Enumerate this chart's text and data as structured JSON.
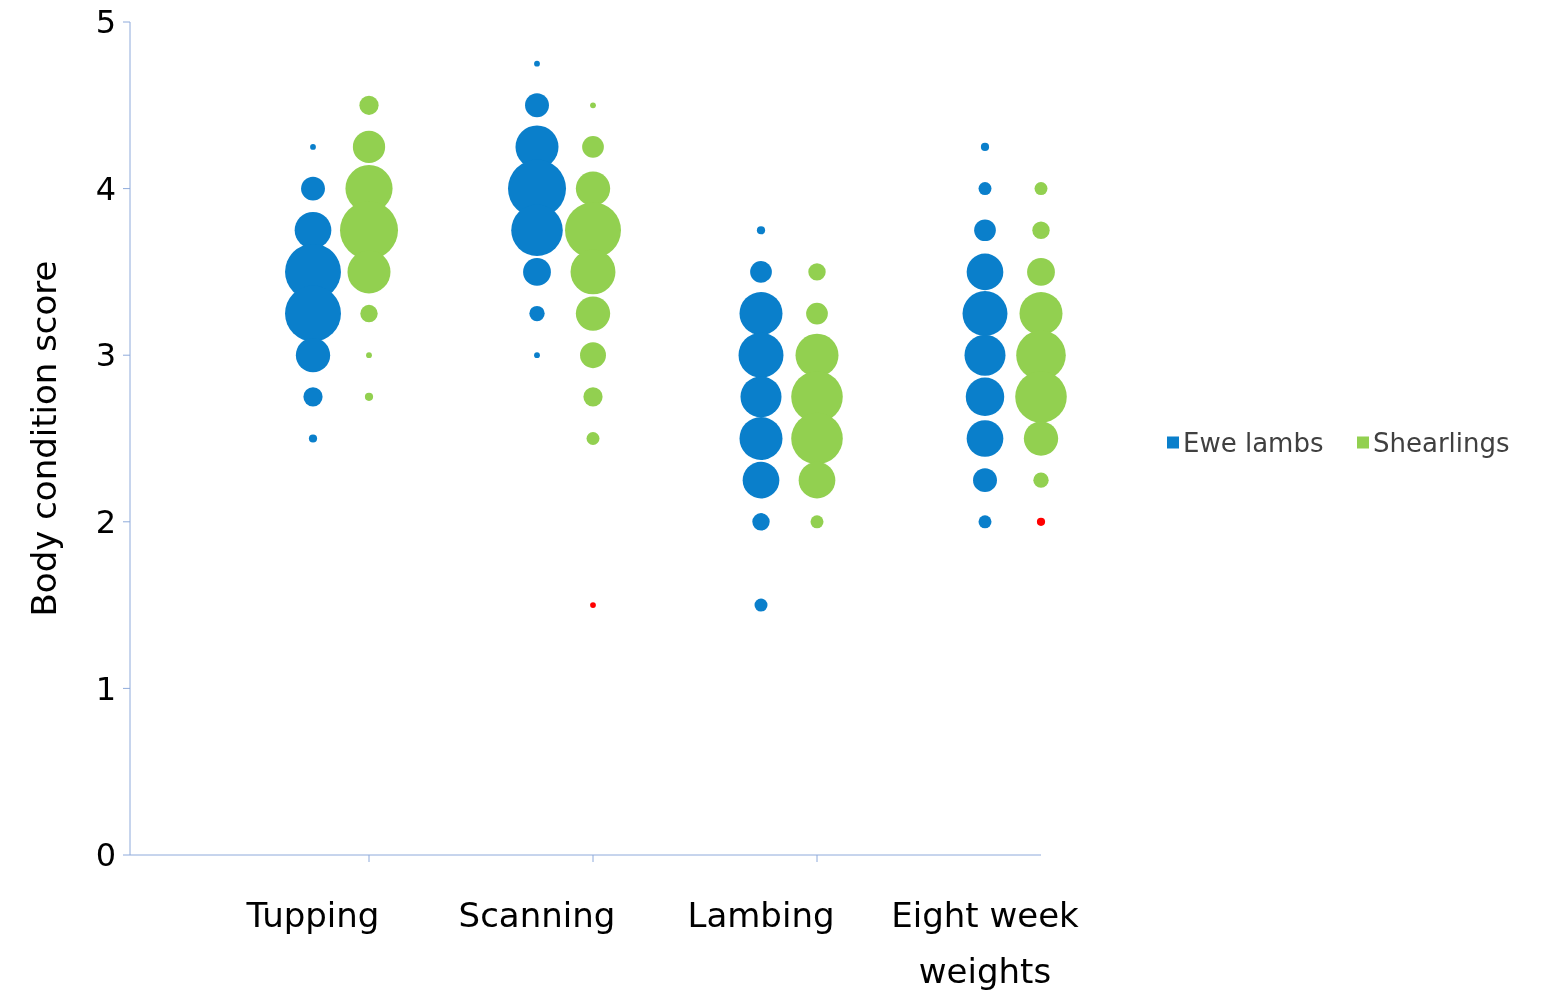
{
  "chart_data": {
    "type": "bubble",
    "ylabel": "Body condition score",
    "categories": [
      "Tupping",
      null,
      null,
      null,
      "Scanning",
      null,
      null,
      null,
      "Lambing",
      null,
      null,
      null,
      "Eight week weights",
      null
    ],
    "ylim": [
      0,
      5
    ],
    "yticks": [
      0,
      1,
      2,
      3,
      4,
      5
    ],
    "legend": "right",
    "series": [
      {
        "name": "Ewe lambs",
        "color": "#0a7fcb",
        "values": [
          4.25,
          null,
          null,
          null,
          4.75,
          null,
          null,
          null,
          3.75,
          null,
          null,
          null,
          4.25,
          null
        ],
        "sizes": [
          0.01,
          null,
          null,
          null,
          0.01,
          null,
          null,
          null,
          0.02,
          null,
          null,
          null,
          0.02,
          null
        ]
      },
      {
        "color": "#0a7fcb",
        "values": [
          4,
          null,
          null,
          null,
          4.5,
          null,
          null,
          null,
          3.5,
          null,
          null,
          null,
          4,
          null
        ],
        "sizes": [
          0.17,
          null,
          null,
          null,
          0.17,
          null,
          null,
          null,
          0.14,
          null,
          null,
          null,
          0.05,
          null
        ]
      },
      {
        "color": "#0a7fcb",
        "values": [
          3.75,
          null,
          null,
          null,
          4.25,
          null,
          null,
          null,
          3.25,
          null,
          null,
          null,
          3.75,
          null
        ],
        "sizes": [
          0.4,
          null,
          null,
          null,
          0.55,
          null,
          null,
          null,
          0.55,
          null,
          null,
          null,
          0.14,
          null
        ]
      },
      {
        "color": "#0a7fcb",
        "values": [
          3.5,
          null,
          null,
          null,
          4,
          null,
          null,
          null,
          3,
          null,
          null,
          null,
          3.5,
          null
        ],
        "sizes": [
          0.93,
          null,
          null,
          null,
          1,
          null,
          null,
          null,
          0.6,
          null,
          null,
          null,
          0.4,
          null
        ]
      },
      {
        "color": "#0a7fcb",
        "values": [
          3.25,
          null,
          null,
          null,
          3.75,
          null,
          null,
          null,
          2.75,
          null,
          null,
          null,
          3.25,
          null
        ],
        "sizes": [
          0.93,
          null,
          null,
          null,
          0.79,
          null,
          null,
          null,
          0.5,
          null,
          null,
          null,
          0.6,
          null
        ]
      },
      {
        "color": "#0a7fcb",
        "values": [
          3,
          null,
          null,
          null,
          3.5,
          null,
          null,
          null,
          2.5,
          null,
          null,
          null,
          3,
          null
        ],
        "sizes": [
          0.35,
          null,
          null,
          null,
          0.23,
          null,
          null,
          null,
          0.55,
          null,
          null,
          null,
          0.5,
          null
        ]
      },
      {
        "color": "#0a7fcb",
        "values": [
          2.75,
          null,
          null,
          null,
          3.25,
          null,
          null,
          null,
          2.25,
          null,
          null,
          null,
          2.75,
          null
        ],
        "sizes": [
          0.11,
          null,
          null,
          null,
          0.07,
          null,
          null,
          null,
          0.4,
          null,
          null,
          null,
          0.44,
          null
        ]
      },
      {
        "color": "#0a7fcb",
        "values": [
          2.5,
          null,
          null,
          null,
          3,
          null,
          null,
          null,
          2,
          null,
          null,
          null,
          2.5,
          null
        ],
        "sizes": [
          0.02,
          null,
          null,
          null,
          0.01,
          null,
          null,
          null,
          0.09,
          null,
          null,
          null,
          0.4,
          null
        ]
      },
      {
        "color": "#0a7fcb",
        "values": [
          null,
          null,
          null,
          null,
          null,
          null,
          null,
          null,
          1.5,
          null,
          null,
          null,
          2.25,
          null
        ],
        "sizes": [
          null,
          null,
          null,
          null,
          null,
          null,
          null,
          null,
          0.05,
          null,
          null,
          null,
          0.17,
          null
        ]
      },
      {
        "color": "#0a7fcb",
        "values": [
          null,
          null,
          null,
          null,
          null,
          null,
          null,
          null,
          null,
          null,
          null,
          null,
          2,
          null
        ],
        "sizes": [
          null,
          null,
          null,
          null,
          null,
          null,
          null,
          null,
          null,
          null,
          null,
          null,
          0.05,
          null
        ]
      },
      {
        "name": "Shearlings",
        "color": "#92d050",
        "values": [
          null,
          4.5,
          null,
          null,
          null,
          4.5,
          null,
          null,
          null,
          3.5,
          null,
          null,
          null,
          4
        ],
        "sizes": [
          null,
          0.11,
          null,
          null,
          null,
          0.01,
          null,
          null,
          null,
          0.09,
          null,
          null,
          null,
          0.05
        ]
      },
      {
        "color": "#92d050",
        "values": [
          null,
          4.25,
          null,
          null,
          null,
          4.25,
          null,
          null,
          null,
          3.25,
          null,
          null,
          null,
          3.75
        ],
        "sizes": [
          null,
          0.31,
          null,
          null,
          null,
          0.14,
          null,
          null,
          null,
          0.14,
          null,
          null,
          null,
          0.09
        ]
      },
      {
        "color": "#92d050",
        "values": [
          null,
          4,
          null,
          null,
          null,
          4,
          null,
          null,
          null,
          3,
          null,
          null,
          null,
          3.5
        ],
        "sizes": [
          null,
          0.66,
          null,
          null,
          null,
          0.35,
          null,
          null,
          null,
          0.55,
          null,
          null,
          null,
          0.23
        ]
      },
      {
        "color": "#92d050",
        "values": [
          null,
          3.75,
          null,
          null,
          null,
          3.75,
          null,
          null,
          null,
          2.75,
          null,
          null,
          null,
          3.25
        ],
        "sizes": [
          null,
          1,
          null,
          null,
          null,
          0.93,
          null,
          null,
          null,
          0.79,
          null,
          null,
          null,
          0.55
        ]
      },
      {
        "color": "#92d050",
        "values": [
          null,
          3.5,
          null,
          null,
          null,
          3.5,
          null,
          null,
          null,
          2.5,
          null,
          null,
          null,
          3
        ],
        "sizes": [
          null,
          0.55,
          null,
          null,
          null,
          0.6,
          null,
          null,
          null,
          0.79,
          null,
          null,
          null,
          0.73
        ]
      },
      {
        "color": "#92d050",
        "values": [
          null,
          3.25,
          null,
          null,
          null,
          3.25,
          null,
          null,
          null,
          2.25,
          null,
          null,
          null,
          2.75
        ],
        "sizes": [
          null,
          0.09,
          null,
          null,
          null,
          0.35,
          null,
          null,
          null,
          0.4,
          null,
          null,
          null,
          0.79
        ]
      },
      {
        "color": "#92d050",
        "values": [
          null,
          3,
          null,
          null,
          null,
          3,
          null,
          null,
          null,
          2,
          null,
          null,
          null,
          2.5
        ],
        "sizes": [
          null,
          0.01,
          null,
          null,
          null,
          0.2,
          null,
          null,
          null,
          0.05,
          null,
          null,
          null,
          0.35
        ]
      },
      {
        "color": "#92d050",
        "values": [
          null,
          2.75,
          null,
          null,
          null,
          2.75,
          null,
          null,
          null,
          null,
          null,
          null,
          null,
          2.25
        ],
        "sizes": [
          null,
          0.02,
          null,
          null,
          null,
          0.11,
          null,
          null,
          null,
          null,
          null,
          null,
          null,
          0.07
        ]
      },
      {
        "color": "#92d050",
        "values": [
          null,
          null,
          null,
          null,
          null,
          2.5,
          null,
          null,
          null,
          null,
          null,
          null,
          null,
          2
        ],
        "sizes": [
          null,
          null,
          null,
          null,
          null,
          0.05,
          null,
          null,
          null,
          null,
          null,
          null,
          null,
          0.02
        ],
        "colors": [
          null,
          null,
          null,
          null,
          null,
          null,
          null,
          null,
          null,
          null,
          null,
          null,
          null,
          "#ff0000"
        ]
      },
      {
        "color": "#ff0000",
        "values": [
          null,
          null,
          null,
          null,
          null,
          1.5,
          null,
          null,
          null,
          null,
          null,
          null,
          null,
          null
        ],
        "sizes": [
          null,
          null,
          null,
          null,
          null,
          0.01,
          null,
          null,
          null,
          null,
          null,
          null,
          null,
          null
        ]
      }
    ]
  }
}
